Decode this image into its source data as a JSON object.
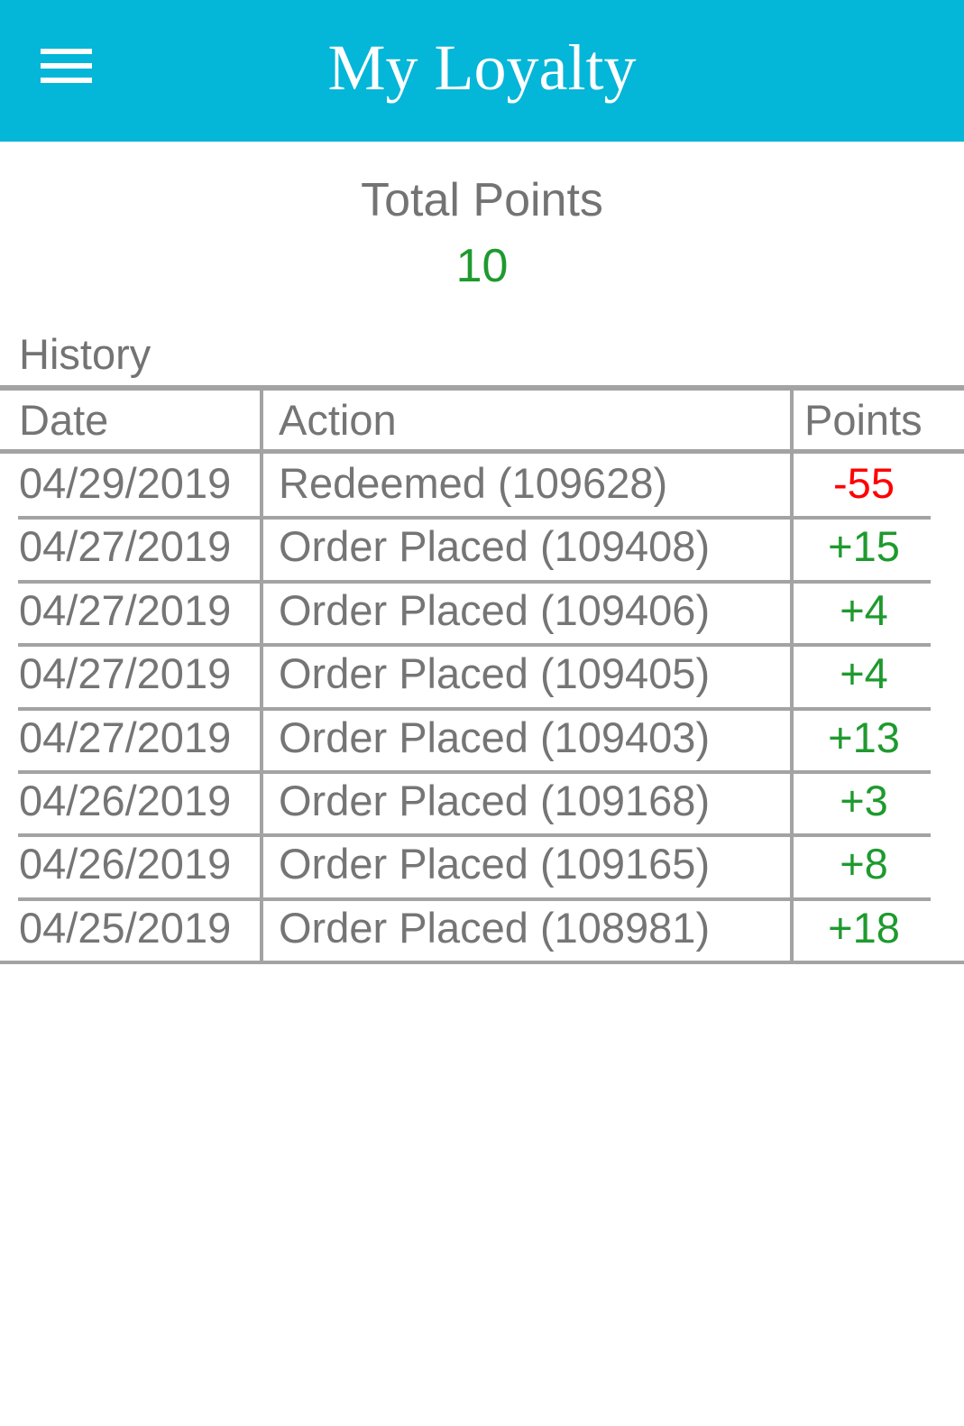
{
  "header": {
    "title": "My Loyalty",
    "menu_icon": "hamburger-menu-icon",
    "background": "#04b6d8"
  },
  "summary": {
    "label": "Total Points",
    "value": "10"
  },
  "history": {
    "title": "History",
    "columns": [
      "Date",
      "Action",
      "Points"
    ],
    "rows": [
      {
        "date": "04/29/2019",
        "action": "Redeemed (109628)",
        "points": "-55"
      },
      {
        "date": "04/27/2019",
        "action": "Order Placed (109408)",
        "points": "+15"
      },
      {
        "date": "04/27/2019",
        "action": "Order Placed (109406)",
        "points": "+4"
      },
      {
        "date": "04/27/2019",
        "action": "Order Placed (109405)",
        "points": "+4"
      },
      {
        "date": "04/27/2019",
        "action": "Order Placed (109403)",
        "points": "+13"
      },
      {
        "date": "04/26/2019",
        "action": "Order Placed (109168)",
        "points": "+3"
      },
      {
        "date": "04/26/2019",
        "action": "Order Placed (109165)",
        "points": "+8"
      },
      {
        "date": "04/25/2019",
        "action": "Order Placed (108981)",
        "points": "+18"
      }
    ]
  },
  "colors": {
    "positive": "#1e9a2e",
    "negative": "#ff0000",
    "text": "#757575",
    "border": "#a3a3a3"
  }
}
